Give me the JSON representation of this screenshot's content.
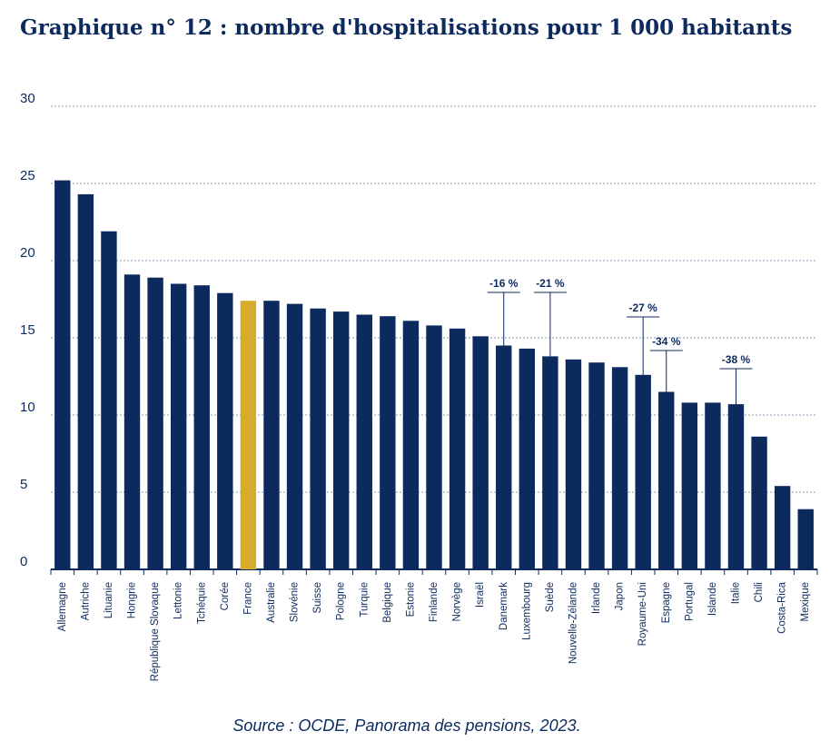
{
  "chart_data": {
    "type": "bar",
    "title": "Graphique n° 12 : nombre d'hospitalisations pour 1 000 habitants",
    "source": "Source : OCDE, Panorama des pensions, 2023.",
    "categories": [
      "Allemagne",
      "Autriche",
      "Lituanie",
      "Hongrie",
      "République Slovaque",
      "Lettonie",
      "Tchéquie",
      "Corée",
      "France",
      "Australie",
      "Slovénie",
      "Suisse",
      "Pologne",
      "Turquie",
      "Belgique",
      "Estonie",
      "Finlande",
      "Norvège",
      "Israël",
      "Danemark",
      "Luxembourg",
      "Suède",
      "Nouvelle-Zélande",
      "Irlande",
      "Japon",
      "Royaume-Uni",
      "Espagne",
      "Portugal",
      "Islande",
      "Italie",
      "Chili",
      "Costa-Rica",
      "Mexique"
    ],
    "values": [
      25.2,
      24.3,
      21.9,
      19.1,
      18.9,
      18.5,
      18.4,
      17.9,
      17.4,
      17.4,
      17.2,
      16.9,
      16.7,
      16.5,
      16.4,
      16.1,
      15.8,
      15.6,
      15.1,
      14.5,
      14.3,
      13.8,
      13.6,
      13.4,
      13.1,
      12.6,
      11.5,
      10.8,
      10.8,
      10.7,
      8.6,
      5.4,
      3.9
    ],
    "color": "#0c2a5e",
    "highlight": {
      "category": "France",
      "color": "#d6ad2a"
    },
    "annotations": [
      {
        "text": "-16 %",
        "category": "Danemark"
      },
      {
        "text": "-21 %",
        "category": "Suède"
      },
      {
        "text": "-27 %",
        "category": "Royaume-Uni"
      },
      {
        "text": "-34 %",
        "category": "Espagne"
      },
      {
        "text": "-38 %",
        "category": "Italie"
      }
    ],
    "ylim": [
      0,
      30
    ],
    "yticks": [
      0,
      5,
      10,
      15,
      20,
      25,
      30
    ],
    "grid": true
  }
}
